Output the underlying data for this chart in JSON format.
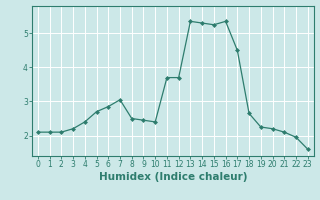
{
  "x": [
    0,
    1,
    2,
    3,
    4,
    5,
    6,
    7,
    8,
    9,
    10,
    11,
    12,
    13,
    14,
    15,
    16,
    17,
    18,
    19,
    20,
    21,
    22,
    23
  ],
  "y": [
    2.1,
    2.1,
    2.1,
    2.2,
    2.4,
    2.7,
    2.85,
    3.05,
    2.5,
    2.45,
    2.4,
    3.7,
    3.7,
    5.35,
    5.3,
    5.25,
    5.35,
    4.5,
    2.65,
    2.25,
    2.2,
    2.1,
    1.95,
    1.6
  ],
  "xlabel": "Humidex (Indice chaleur)",
  "xlim": [
    -0.5,
    23.5
  ],
  "ylim": [
    1.4,
    5.8
  ],
  "yticks": [
    2,
    3,
    4,
    5
  ],
  "xticks": [
    0,
    1,
    2,
    3,
    4,
    5,
    6,
    7,
    8,
    9,
    10,
    11,
    12,
    13,
    14,
    15,
    16,
    17,
    18,
    19,
    20,
    21,
    22,
    23
  ],
  "line_color": "#2e7d6e",
  "marker": "D",
  "marker_size": 2.0,
  "bg_color": "#cce8e8",
  "grid_color": "#ffffff",
  "tick_label_fontsize": 5.5,
  "xlabel_fontsize": 7.5
}
